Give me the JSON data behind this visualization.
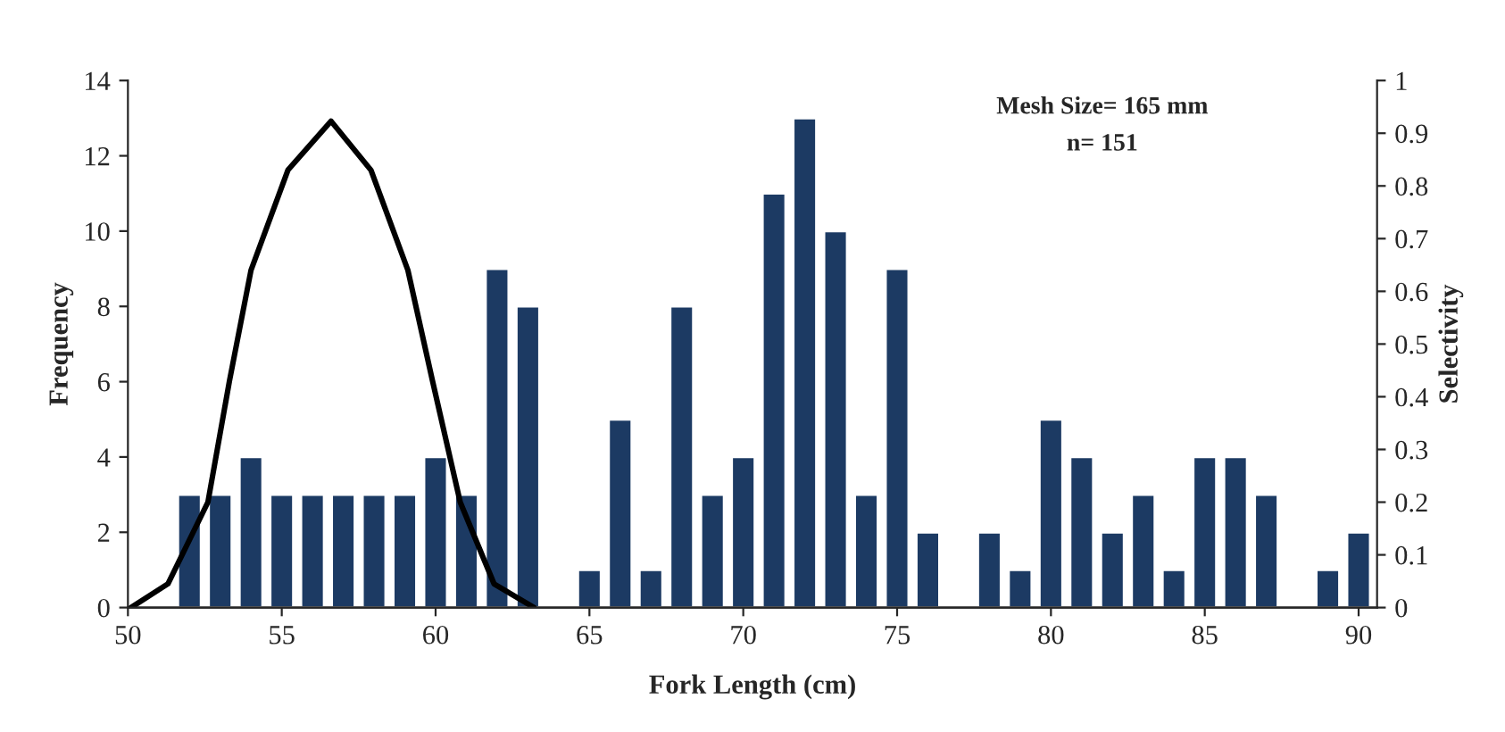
{
  "chart_data": {
    "type": "bar",
    "xlabel": "Fork Length (cm)",
    "ylabel": "Frequency",
    "y2label": "Selectivity",
    "annotations": [
      "Mesh Size= 165 mm",
      "n= 151"
    ],
    "grid": false,
    "legend": false,
    "xlim": [
      50,
      90.6
    ],
    "xticks": [
      50,
      55,
      60,
      65,
      70,
      75,
      80,
      85,
      90
    ],
    "ylim": [
      0,
      14
    ],
    "yticks": [
      0,
      2,
      4,
      6,
      8,
      10,
      12,
      14
    ],
    "y2lim": [
      0,
      1
    ],
    "y2ticks": [
      0,
      {
        "value": 0.1,
        "label": "0.1"
      },
      {
        "value": 0.2,
        "label": "0.2"
      },
      {
        "value": 0.3,
        "label": "0.3"
      },
      {
        "value": 0.4,
        "label": "0.4"
      },
      {
        "value": 0.5,
        "label": "0.5"
      },
      {
        "value": 0.6,
        "label": "0.6"
      },
      {
        "value": 0.7,
        "label": "0.7"
      },
      {
        "value": 0.8,
        "label": "0.8"
      },
      {
        "value": 0.9,
        "label": "0.9"
      },
      1
    ],
    "series": [
      {
        "color": "#1c3a63",
        "x": [
          52,
          53,
          54,
          55,
          56,
          57,
          58,
          59,
          60,
          61,
          62,
          63,
          65,
          66,
          67,
          68,
          69,
          70,
          71,
          72,
          73,
          74,
          75,
          76,
          78,
          79,
          80,
          81,
          82,
          83,
          84,
          85,
          86,
          87,
          89,
          90
        ],
        "values": [
          3,
          3,
          4,
          3,
          3,
          3,
          3,
          3,
          4,
          3,
          9,
          8,
          1,
          5,
          1,
          8,
          3,
          4,
          11,
          13,
          10,
          3,
          9,
          2,
          2,
          1,
          5,
          4,
          2,
          3,
          1,
          4,
          4,
          3,
          1,
          2
        ]
      },
      {
        "type": "line",
        "axis": "y2",
        "color": "#000000",
        "x": [
          50.1,
          51.3,
          52.6,
          53.3,
          54.0,
          55.2,
          56.6,
          57.9,
          59.1,
          59.9,
          60.8,
          61.9,
          63.2
        ],
        "values": [
          0,
          0.045,
          0.2,
          0.43,
          0.64,
          0.83,
          0.923,
          0.83,
          0.64,
          0.43,
          0.2,
          0.045,
          0
        ]
      }
    ]
  }
}
